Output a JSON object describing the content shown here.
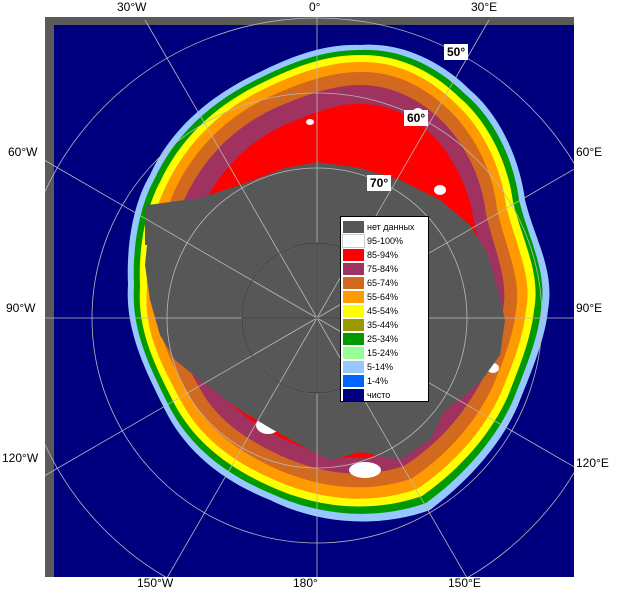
{
  "map": {
    "colors": {
      "ocean": "#00007f",
      "no_data": "#575757",
      "frame": "#5a5a5a",
      "graticule": "#b9b9b9"
    },
    "longitude_labels": {
      "top_30w": "30°W",
      "top_0": "0°",
      "top_30e": "30°E",
      "left_60w": "60°W",
      "right_60e": "60°E",
      "left_90w": "90°W",
      "right_90e": "90°E",
      "left_120w": "120°W",
      "right_120e": "120°E",
      "bottom_150w": "150°W",
      "bottom_180": "180°",
      "bottom_150e": "150°E"
    },
    "latitude_labels": {
      "lat_50": "50°",
      "lat_60": "60°",
      "lat_70": "70°"
    }
  },
  "legend": {
    "items": [
      {
        "label": "нет данных",
        "color": "#575757"
      },
      {
        "label": "95-100%",
        "color": "#ffffff"
      },
      {
        "label": "85-94%",
        "color": "#ff0000"
      },
      {
        "label": "75-84%",
        "color": "#a0325f"
      },
      {
        "label": "65-74%",
        "color": "#d2691e"
      },
      {
        "label": "55-64%",
        "color": "#ff9a00"
      },
      {
        "label": "45-54%",
        "color": "#ffff00"
      },
      {
        "label": "35-44%",
        "color": "#9a9a00"
      },
      {
        "label": "25-34%",
        "color": "#009a00"
      },
      {
        "label": "15-24%",
        "color": "#96ff96"
      },
      {
        "label": "5-14%",
        "color": "#96c8ff"
      },
      {
        "label": "1-4%",
        "color": "#0064ff"
      },
      {
        "label": "чисто",
        "color": "#00007f"
      }
    ]
  }
}
